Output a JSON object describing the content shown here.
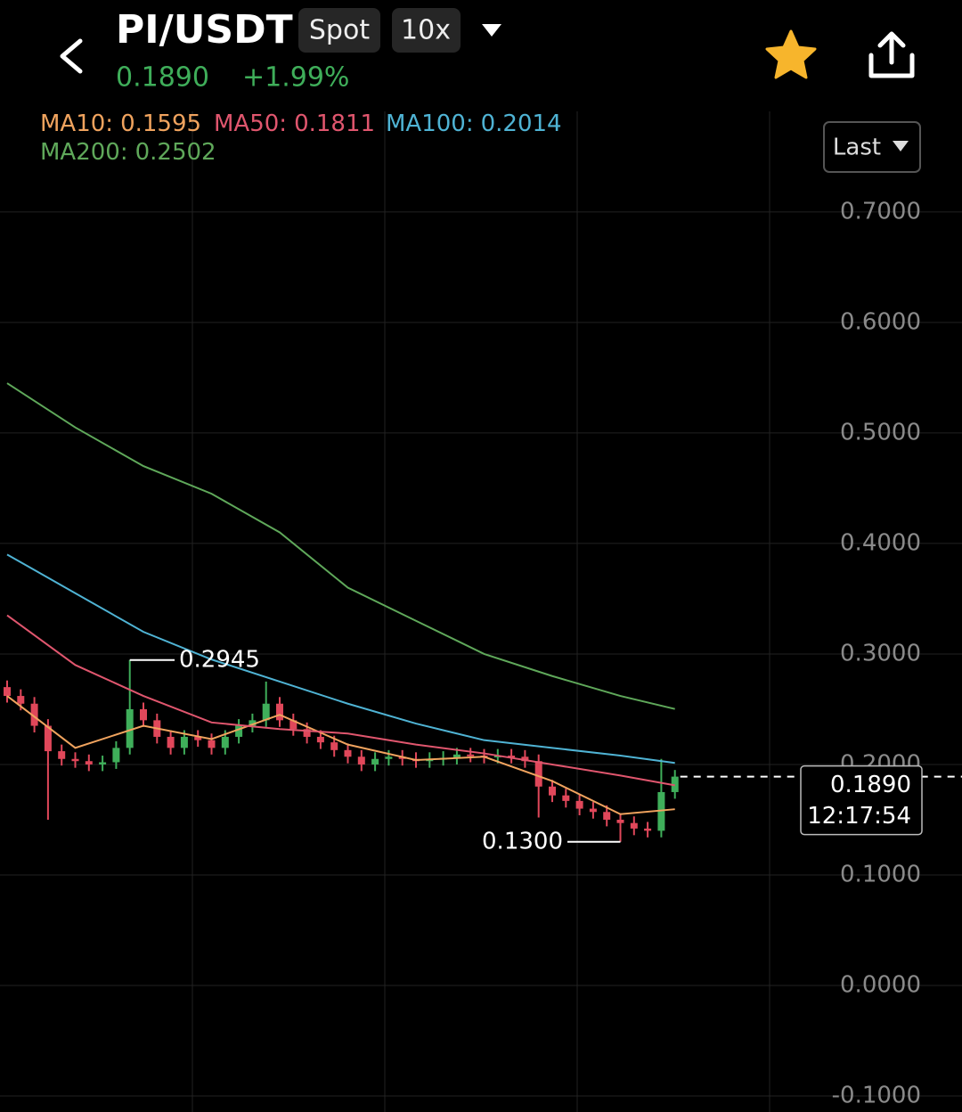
{
  "header": {
    "pair": "PI/USDT",
    "market": "Spot",
    "leverage": "10x",
    "price": "0.1890",
    "change": "+1.99%"
  },
  "price_type_button": "Last",
  "chart_data": {
    "type": "candlestick",
    "up_color": "#3fae5a",
    "down_color": "#e0475a",
    "ylim": [
      -0.1145,
      0.791
    ],
    "yticks": [
      {
        "value": -0.1,
        "label": "-0.1000"
      },
      {
        "value": 0,
        "label": "0.0000"
      },
      {
        "value": 0.1,
        "label": "0.1000"
      },
      {
        "value": 0.2,
        "label": "0.2000"
      },
      {
        "value": 0.3,
        "label": "0.3000"
      },
      {
        "value": 0.4,
        "label": "0.4000"
      },
      {
        "value": 0.5,
        "label": "0.5000"
      },
      {
        "value": 0.6,
        "label": "0.6000"
      },
      {
        "value": 0.7,
        "label": "0.7000"
      }
    ],
    "grid": true,
    "open": [
      0.27,
      0.262,
      0.255,
      0.235,
      0.212,
      0.205,
      0.203,
      0.2,
      0.202,
      0.215,
      0.25,
      0.24,
      0.225,
      0.215,
      0.225,
      0.222,
      0.215,
      0.225,
      0.235,
      0.24,
      0.255,
      0.24,
      0.232,
      0.225,
      0.22,
      0.213,
      0.207,
      0.2,
      0.205,
      0.207,
      0.205,
      0.203,
      0.205,
      0.206,
      0.209,
      0.208,
      0.207,
      0.208,
      0.207,
      0.203,
      0.18,
      0.172,
      0.167,
      0.16,
      0.157,
      0.15,
      0.147,
      0.142,
      0.14,
      0.175
    ],
    "high": [
      0.276,
      0.268,
      0.261,
      0.241,
      0.218,
      0.211,
      0.209,
      0.208,
      0.221,
      0.2945,
      0.256,
      0.246,
      0.231,
      0.231,
      0.231,
      0.228,
      0.231,
      0.241,
      0.246,
      0.275,
      0.261,
      0.246,
      0.238,
      0.231,
      0.226,
      0.219,
      0.213,
      0.211,
      0.213,
      0.213,
      0.211,
      0.211,
      0.212,
      0.215,
      0.215,
      0.214,
      0.214,
      0.214,
      0.213,
      0.209,
      0.186,
      0.178,
      0.173,
      0.166,
      0.163,
      0.156,
      0.153,
      0.148,
      0.205,
      0.195
    ],
    "low": [
      0.256,
      0.249,
      0.229,
      0.15,
      0.199,
      0.197,
      0.194,
      0.194,
      0.196,
      0.209,
      0.234,
      0.219,
      0.209,
      0.209,
      0.216,
      0.209,
      0.209,
      0.219,
      0.229,
      0.234,
      0.234,
      0.226,
      0.219,
      0.214,
      0.207,
      0.201,
      0.194,
      0.194,
      0.199,
      0.199,
      0.197,
      0.197,
      0.199,
      0.2,
      0.202,
      0.201,
      0.201,
      0.201,
      0.197,
      0.152,
      0.166,
      0.161,
      0.154,
      0.151,
      0.144,
      0.13,
      0.136,
      0.134,
      0.134,
      0.169
    ],
    "close": [
      0.262,
      0.255,
      0.235,
      0.212,
      0.205,
      0.203,
      0.2,
      0.202,
      0.215,
      0.25,
      0.24,
      0.225,
      0.215,
      0.225,
      0.222,
      0.215,
      0.225,
      0.235,
      0.24,
      0.255,
      0.24,
      0.232,
      0.225,
      0.22,
      0.213,
      0.207,
      0.2,
      0.205,
      0.207,
      0.205,
      0.203,
      0.205,
      0.206,
      0.209,
      0.208,
      0.207,
      0.208,
      0.207,
      0.203,
      0.18,
      0.172,
      0.167,
      0.16,
      0.157,
      0.15,
      0.147,
      0.142,
      0.14,
      0.175,
      0.189
    ],
    "ma_x": [
      0,
      5,
      10,
      15,
      20,
      25,
      30,
      35,
      40,
      45,
      49
    ],
    "series": [
      {
        "name": "MA10:",
        "last": 0.1595,
        "color": "#f0a35e",
        "values": [
          0.262,
          0.215,
          0.235,
          0.223,
          0.245,
          0.218,
          0.204,
          0.207,
          0.185,
          0.155,
          0.1595
        ]
      },
      {
        "name": "MA50:",
        "last": 0.1811,
        "color": "#e0566e",
        "values": [
          0.335,
          0.29,
          0.262,
          0.238,
          0.232,
          0.228,
          0.218,
          0.21,
          0.2,
          0.19,
          0.1811
        ]
      },
      {
        "name": "MA100:",
        "last": 0.2014,
        "color": "#4fb3d4",
        "values": [
          0.39,
          0.355,
          0.32,
          0.295,
          0.275,
          0.255,
          0.237,
          0.222,
          0.215,
          0.208,
          0.2014
        ]
      },
      {
        "name": "MA200:",
        "last": 0.2502,
        "color": "#5fa85a",
        "values": [
          0.545,
          0.505,
          0.47,
          0.445,
          0.41,
          0.36,
          0.33,
          0.3,
          0.28,
          0.262,
          0.2502
        ]
      }
    ],
    "high_annotation": {
      "value": 0.2945,
      "label": "0.2945"
    },
    "low_annotation": {
      "value": 0.13,
      "label": "0.1300"
    },
    "current_price": {
      "value": 0.189,
      "label": "0.1890"
    },
    "countdown": "12:17:54"
  }
}
